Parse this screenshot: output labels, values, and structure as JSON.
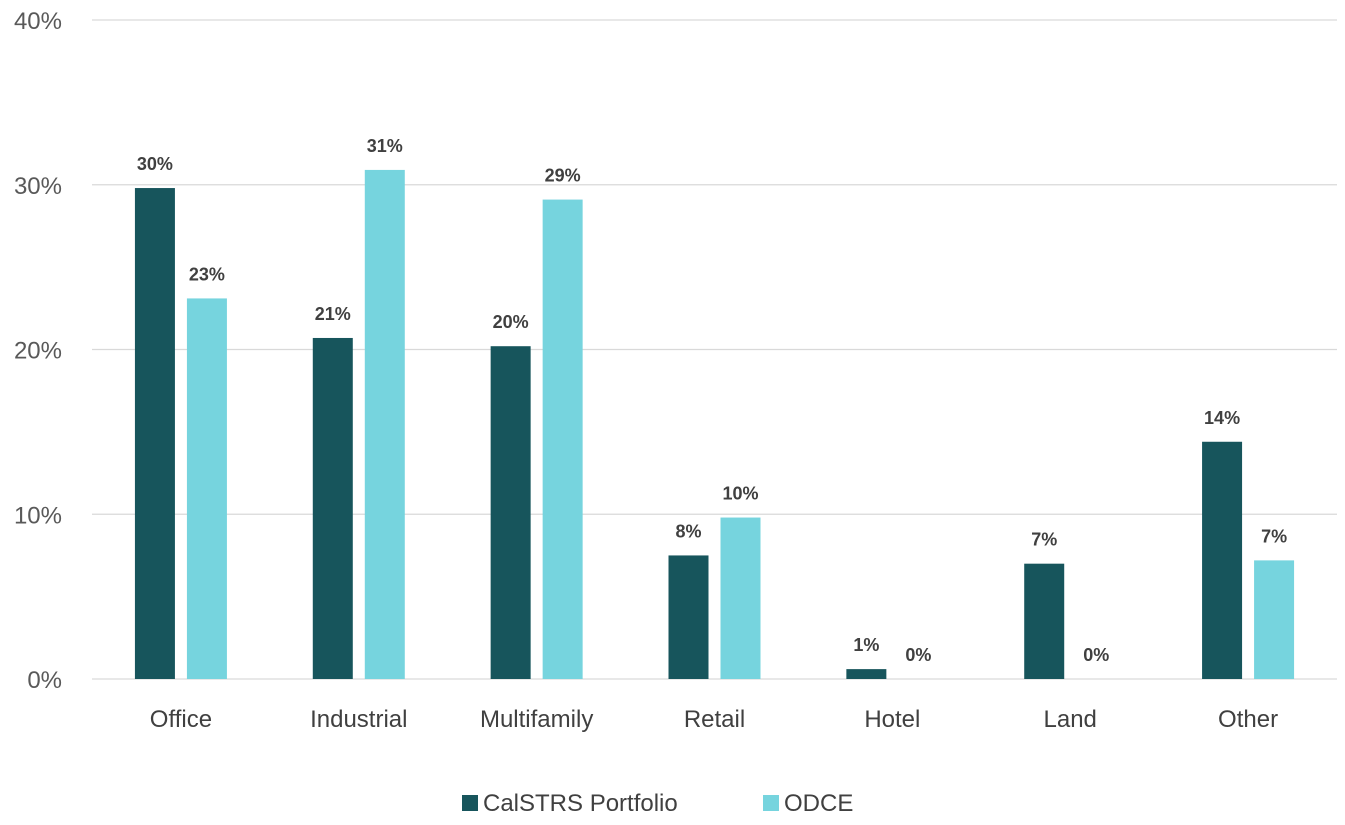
{
  "chart_data": {
    "type": "bar",
    "categories": [
      "Office",
      "Industrial",
      "Multifamily",
      "Retail",
      "Hotel",
      "Land",
      "Other"
    ],
    "series": [
      {
        "name": "CalSTRS Portfolio",
        "color": "#17555c",
        "values": [
          29.8,
          20.7,
          20.2,
          7.5,
          0.6,
          7.0,
          14.4
        ],
        "labels": [
          "30%",
          "21%",
          "20%",
          "8%",
          "1%",
          "7%",
          "14%"
        ]
      },
      {
        "name": "ODCE",
        "color": "#76d4de",
        "values": [
          23.1,
          30.9,
          29.1,
          9.8,
          0,
          0,
          7.2
        ],
        "labels": [
          "23%",
          "31%",
          "29%",
          "10%",
          "0%",
          "0%",
          "7%"
        ]
      }
    ],
    "ylim": [
      0,
      40
    ],
    "yticks": [
      0,
      10,
      20,
      30,
      40
    ],
    "ytick_labels": [
      "0%",
      "10%",
      "20%",
      "30%",
      "40%"
    ],
    "title": "",
    "xlabel": "",
    "ylabel": "",
    "grid": true,
    "legend_position": "bottom-center"
  }
}
